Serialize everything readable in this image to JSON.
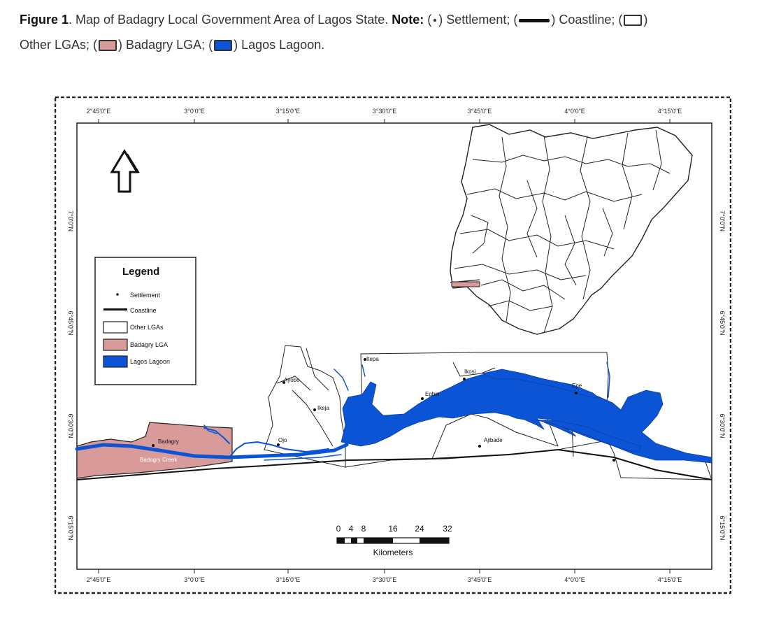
{
  "caption": {
    "figure_label": "Figure 1",
    "title": ". Map of Badagry Local Government Area of Lagos State. ",
    "note_label": "Note:",
    "open1": " (",
    "after_dot": ") Settlement; (",
    "after_line": ") Coastline; (",
    "after_box": ")",
    "other_lgas_open": "Other LGAs; (",
    "after_pink": ") Badagry LGA; (",
    "after_blue": ") Lagos Lagoon."
  },
  "map": {
    "top_ticks": [
      "2°45'0\"E",
      "3°0'0\"E",
      "3°15'0\"E",
      "3°30'0\"E",
      "3°45'0\"E",
      "4°0'0\"E",
      "4°15'0\"E"
    ],
    "bottom_ticks": [
      "2°45'0\"E",
      "3°0'0\"E",
      "3°15'0\"E",
      "3°30'0\"E",
      "3°45'0\"E",
      "4°0'0\"E",
      "4°15'0\"E"
    ],
    "left_ticks": [
      "7°0'0\"N",
      "6°45'0\"N",
      "6°30'0\"N",
      "6°15'0\"N"
    ],
    "right_ticks": [
      "7°0'0\"N",
      "6°45'0\"N",
      "6°30'0\"N",
      "6°15'0\"N"
    ],
    "legend": {
      "title": "Legend",
      "items": [
        {
          "label": "Settlement",
          "symbol": "dot"
        },
        {
          "label": "Coastline",
          "symbol": "line"
        },
        {
          "label": "Other LGAs",
          "symbol": "white-box",
          "color": "#ffffff"
        },
        {
          "label": "Badagry LGA",
          "symbol": "pink-box",
          "color": "#d99a9a"
        },
        {
          "label": "Lagos Lagoon",
          "symbol": "blue-box",
          "color": "#0b54d6"
        }
      ]
    },
    "places": {
      "badagry": "Badagry",
      "badagry_creek": "Badagry Creek",
      "ayobo": "Ayobo",
      "ikeja": "Ikeja",
      "ojo": "Ojo",
      "itepa": "Itepa",
      "egbin": "Egbin",
      "ikosi": "Ikosi",
      "epe": "Epe",
      "ajibade": "Ajibade"
    },
    "scale": {
      "ticks": [
        "0",
        "4",
        "8",
        "16",
        "24",
        "32"
      ],
      "unit": "Kilometers"
    },
    "colors": {
      "badagry": "#d99a9a",
      "lagoon": "#0b54d6",
      "other": "#ffffff"
    }
  }
}
